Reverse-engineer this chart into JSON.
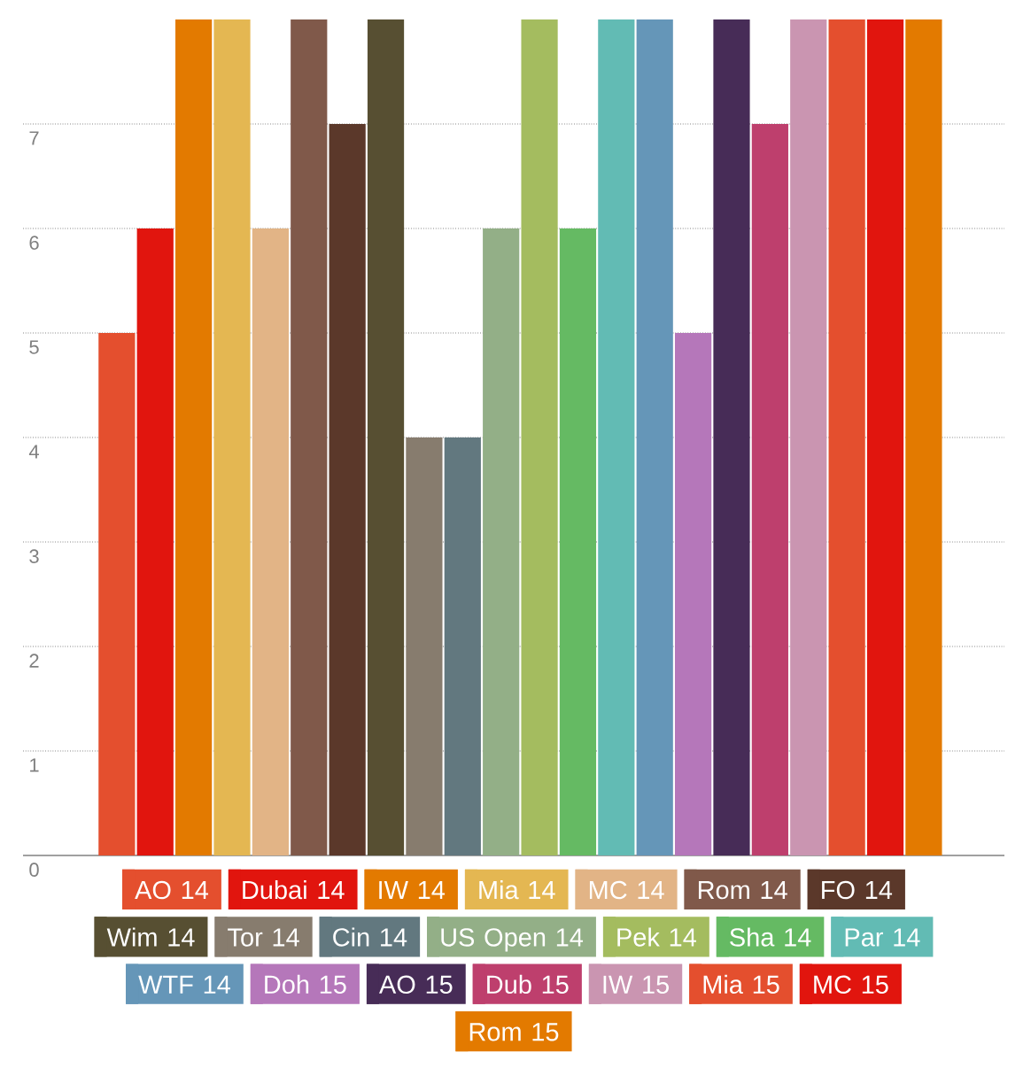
{
  "chart_data": {
    "type": "bar",
    "categories": [
      null
    ],
    "series": [
      {
        "name": "AO 14",
        "color": "#e44f2e",
        "values": [
          5
        ]
      },
      {
        "name": "Dubai 14",
        "color": "#e1150e",
        "values": [
          6
        ]
      },
      {
        "name": "IW 14",
        "color": "#e37a00",
        "values": [
          8
        ]
      },
      {
        "name": "Mia 14",
        "color": "#e4b752",
        "values": [
          8
        ]
      },
      {
        "name": "MC 14",
        "color": "#e2b486",
        "values": [
          6
        ]
      },
      {
        "name": "Rom 14",
        "color": "#80594a",
        "values": [
          8
        ]
      },
      {
        "name": "FO 14",
        "color": "#5b382a",
        "values": [
          7
        ]
      },
      {
        "name": "Wim 14",
        "color": "#574f32",
        "values": [
          8
        ]
      },
      {
        "name": "Tor 14",
        "color": "#877c6e",
        "values": [
          4
        ]
      },
      {
        "name": "Cin 14",
        "color": "#62787f",
        "values": [
          4
        ]
      },
      {
        "name": "US Open 14",
        "color": "#93af87",
        "values": [
          6
        ]
      },
      {
        "name": "Pek 14",
        "color": "#a4bc5f",
        "values": [
          8
        ]
      },
      {
        "name": "Sha 14",
        "color": "#65ba63",
        "values": [
          6
        ]
      },
      {
        "name": "Par 14",
        "color": "#62bbb4",
        "values": [
          8
        ]
      },
      {
        "name": "WTF 14",
        "color": "#6596b8",
        "values": [
          8
        ]
      },
      {
        "name": "Doh 15",
        "color": "#b577ba",
        "values": [
          5
        ]
      },
      {
        "name": "AO 15",
        "color": "#472c57",
        "values": [
          8
        ]
      },
      {
        "name": "Dub 15",
        "color": "#be3f6d",
        "values": [
          7
        ]
      },
      {
        "name": "IW 15",
        "color": "#ca95b1",
        "values": [
          8
        ]
      },
      {
        "name": "Mia 15",
        "color": "#e44f2e",
        "values": [
          8
        ]
      },
      {
        "name": "MC 15",
        "color": "#e1150e",
        "values": [
          8
        ]
      },
      {
        "name": "Rom 15",
        "color": "#e37a00",
        "values": [
          8
        ]
      }
    ],
    "ylim": [
      0,
      8
    ],
    "yticks": [
      0,
      1,
      2,
      3,
      4,
      5,
      6,
      7
    ],
    "grid": "y",
    "legend": "bottom"
  }
}
